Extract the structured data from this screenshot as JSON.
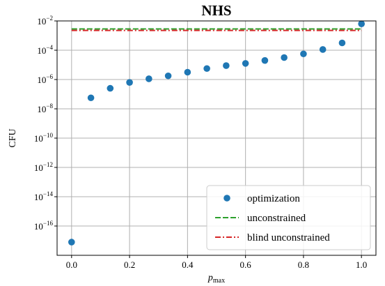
{
  "chart_data": {
    "type": "scatter",
    "title": "NHS",
    "xlabel": "p",
    "xlabel_sub": "max",
    "ylabel": "CFU",
    "y_scale": "log",
    "xlim": [
      -0.05,
      1.05
    ],
    "ylim_exp": [
      -18,
      -2
    ],
    "x_ticks": [
      "0.0",
      "0.2",
      "0.4",
      "0.6",
      "0.8",
      "1.0"
    ],
    "x_tick_values": [
      0.0,
      0.2,
      0.4,
      0.6,
      0.8,
      1.0
    ],
    "y_tick_base": "10",
    "y_tick_exponents": [
      "−2",
      "−4",
      "−6",
      "−8",
      "−10",
      "−12",
      "−14",
      "−16"
    ],
    "y_tick_values": [
      -2,
      -4,
      -6,
      -8,
      -10,
      -12,
      -14,
      -16
    ],
    "grid": true,
    "legend_position": "lower-right",
    "series": [
      {
        "name": "optimization",
        "kind": "scatter",
        "color": "#1f77b4",
        "x": [
          0.0,
          0.0667,
          0.1333,
          0.2,
          0.2667,
          0.3333,
          0.4,
          0.4667,
          0.5333,
          0.6,
          0.6667,
          0.7333,
          0.8,
          0.8667,
          0.9333,
          1.0
        ],
        "y_exp": [
          -17.1,
          -7.25,
          -6.6,
          -6.2,
          -5.95,
          -5.75,
          -5.5,
          -5.25,
          -5.05,
          -4.9,
          -4.7,
          -4.5,
          -4.25,
          -3.95,
          -3.5,
          -2.2
        ]
      },
      {
        "name": "unconstrained",
        "kind": "hline",
        "style": "dashed",
        "color": "#2ca02c",
        "x": [
          -0.0,
          1.0
        ],
        "y_exp": [
          -2.55,
          -2.55
        ]
      },
      {
        "name": "blind unconstrained",
        "kind": "hline",
        "style": "dashdot",
        "color": "#d62728",
        "x": [
          -0.0,
          1.0
        ],
        "y_exp": [
          -2.65,
          -2.65
        ]
      }
    ]
  }
}
